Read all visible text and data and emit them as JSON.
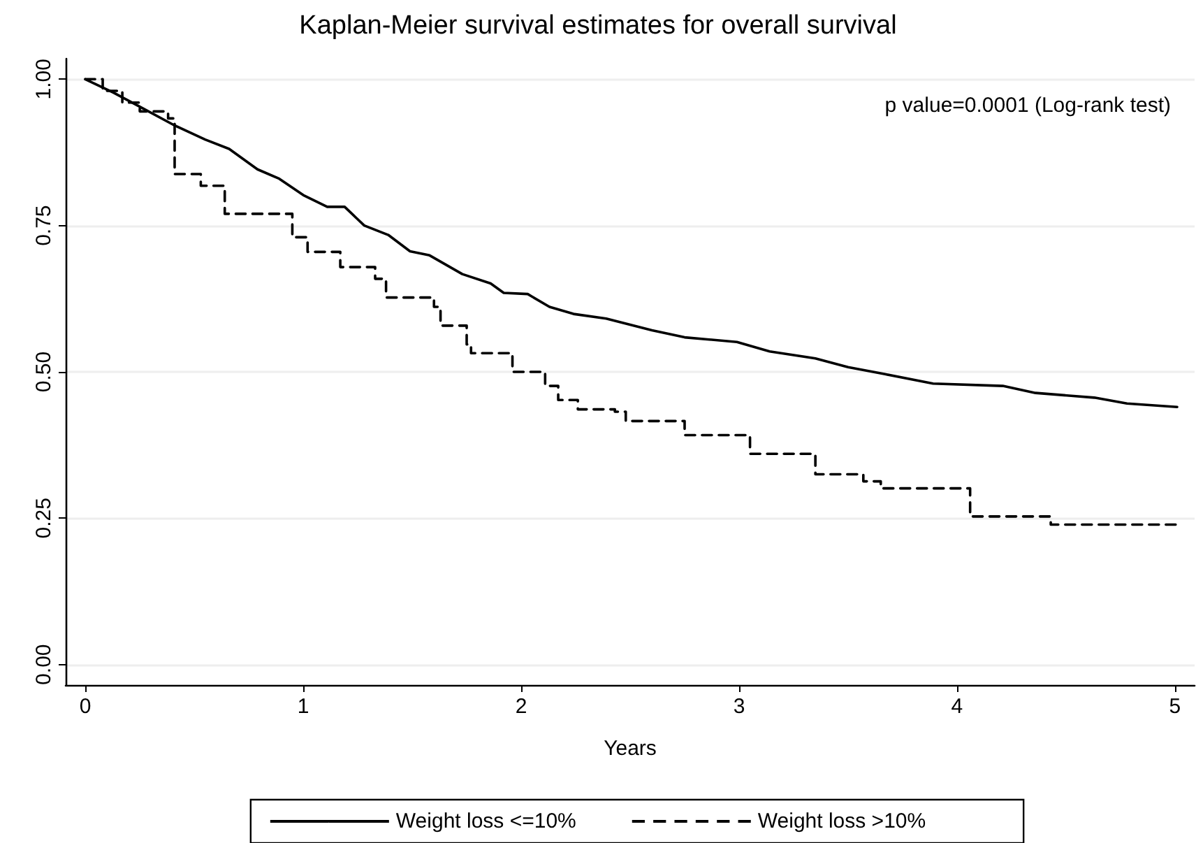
{
  "chart_data": {
    "type": "line",
    "title": "Kaplan-Meier survival estimates for overall survival",
    "xlabel": "Years",
    "annotations": [
      "p value=0.0001 (Log-rank test)"
    ],
    "xlim": [
      -0.09,
      5.09
    ],
    "xticks": [
      0,
      1,
      2,
      3,
      4,
      5
    ],
    "ylim": [
      -0.035,
      1.035
    ],
    "yticks": [
      {
        "value": 0,
        "label": "0.00"
      },
      {
        "value": 0.25,
        "label": "0.25"
      },
      {
        "value": 0.5,
        "label": "0.50"
      },
      {
        "value": 0.75,
        "label": "0.75"
      },
      {
        "value": 1,
        "label": "1.00"
      }
    ],
    "grid": "y",
    "legend": "bottom",
    "marker": "none",
    "series": [
      {
        "name": "Weight loss <=10%",
        "color": "#000000",
        "type": "line",
        "line_style": "solid",
        "x": [
          0,
          0.13,
          0.25,
          0.41,
          0.55,
          0.66,
          0.79,
          0.89,
          1.0,
          1.11,
          1.19,
          1.28,
          1.39,
          1.49,
          1.58,
          1.73,
          1.86,
          1.92,
          2.03,
          2.13,
          2.24,
          2.39,
          2.6,
          2.75,
          2.99,
          3.14,
          3.35,
          3.5,
          3.67,
          3.89,
          4.21,
          4.36,
          4.63,
          4.78,
          5.01
        ],
        "values": [
          1.0,
          0.977,
          0.953,
          0.921,
          0.897,
          0.881,
          0.846,
          0.83,
          0.802,
          0.782,
          0.782,
          0.75,
          0.734,
          0.706,
          0.699,
          0.667,
          0.651,
          0.635,
          0.633,
          0.611,
          0.599,
          0.591,
          0.571,
          0.559,
          0.551,
          0.535,
          0.523,
          0.508,
          0.496,
          0.48,
          0.476,
          0.464,
          0.456,
          0.446,
          0.44
        ]
      },
      {
        "name": "Weight loss >10%",
        "color": "#000000",
        "type": "step",
        "line_style": "dashed",
        "x": [
          0,
          0.08,
          0.17,
          0.25,
          0.38,
          0.41,
          0.53,
          0.64,
          0.95,
          1.02,
          1.17,
          1.33,
          1.38,
          1.6,
          1.63,
          1.75,
          1.77,
          1.96,
          2.11,
          2.17,
          2.26,
          2.43,
          2.48,
          2.75,
          3.05,
          3.35,
          3.57,
          3.65,
          4.06,
          4.43,
          5.01
        ],
        "values": [
          1.0,
          0.98,
          0.96,
          0.945,
          0.933,
          0.838,
          0.818,
          0.77,
          0.73,
          0.705,
          0.679,
          0.659,
          0.627,
          0.611,
          0.579,
          0.547,
          0.532,
          0.5,
          0.476,
          0.452,
          0.436,
          0.432,
          0.416,
          0.392,
          0.36,
          0.325,
          0.313,
          0.301,
          0.253,
          0.239,
          0.239
        ]
      }
    ]
  }
}
